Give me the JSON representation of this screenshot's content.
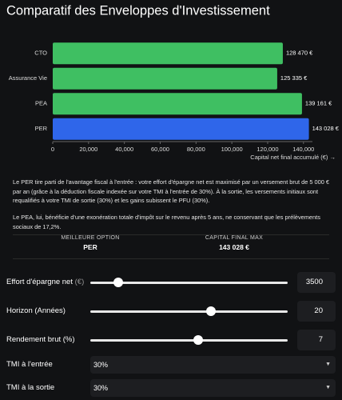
{
  "title": "Comparatif des Enveloppes d'Investissement",
  "chart_data": {
    "type": "bar",
    "orientation": "horizontal",
    "categories": [
      "CTO",
      "Assurance Vie",
      "PEA",
      "PER"
    ],
    "values": [
      128470,
      125335,
      139161,
      143028
    ],
    "value_labels": [
      "128 470 €",
      "125 335 €",
      "139 161 €",
      "143 028 €"
    ],
    "colors": [
      "#3fbf62",
      "#3fbf62",
      "#3fbf62",
      "#2f66ea"
    ],
    "xlim": [
      0,
      145000
    ],
    "xticks": [
      0,
      {
        "value": 20000,
        "label": "20,000"
      },
      {
        "value": 40000,
        "label": "40,000"
      },
      {
        "value": 60000,
        "label": "60,000"
      },
      {
        "value": 80000,
        "label": "80,000"
      },
      {
        "value": 100000,
        "label": "100,000"
      },
      {
        "value": 120000,
        "label": "120,000"
      },
      {
        "value": 140000,
        "label": "140,000"
      }
    ],
    "xlabel": "Capital net final accumulé (€) →"
  },
  "explanation": [
    "Le PER tire parti de l'avantage fiscal à l'entrée : votre effort d'épargne net est maximisé par un versement brut de 5 000 € par an (grâce à la déduction fiscale indexée sur votre TMI à l'entrée de 30%). À la sortie, les versements initiaux sont requalifiés à votre TMI de sortie (30%) et les gains subissent le PFU (30%).",
    "Le PEA, lui, bénéficie d'une exonération totale d'impôt sur le revenu après 5 ans, ne conservant que les prélèvements sociaux de 17,2%."
  ],
  "summary": [
    {
      "label": "MEILLEURE OPTION",
      "value": "PER"
    },
    {
      "label": "CAPITAL FINAL MAX",
      "value": "143 028 €"
    }
  ],
  "sliders": [
    {
      "label": "Effort d'épargne net",
      "unit": "(€)",
      "value": 3500,
      "min": 0,
      "max": 25000
    },
    {
      "label": "Horizon (Années)",
      "value": 20,
      "min": 1,
      "max": 32
    },
    {
      "label": "Rendement brut (%)",
      "value": 7,
      "min": 1,
      "max": 12
    }
  ],
  "selects": [
    {
      "label": "TMI à l'entrée",
      "value": "30%"
    },
    {
      "label": "TMI à la sortie",
      "value": "30%"
    }
  ]
}
